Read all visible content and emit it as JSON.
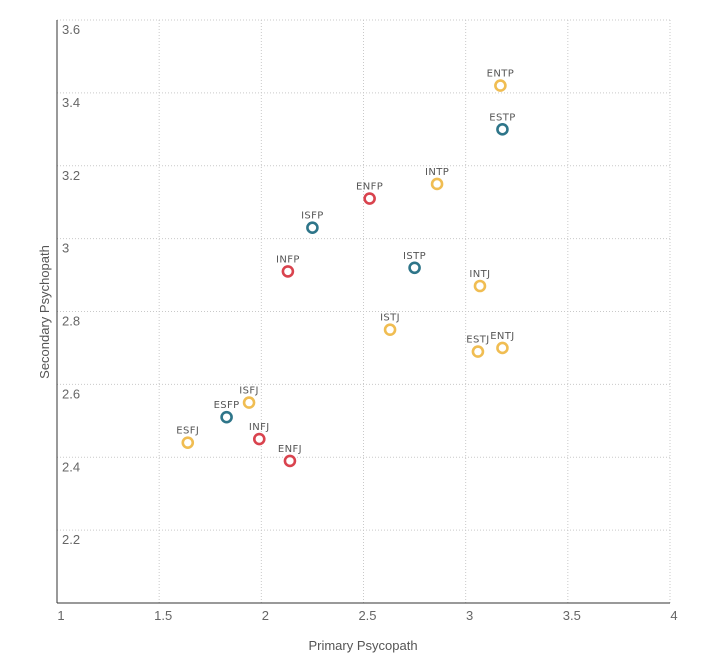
{
  "chart_data": {
    "type": "scatter",
    "title": "",
    "xlabel": "Primary Psycopath",
    "ylabel": "Secondary Psychopath",
    "xlim": [
      1,
      4
    ],
    "ylim": [
      2,
      3.6
    ],
    "x_ticks": [
      1,
      1.5,
      2,
      2.5,
      3,
      3.5,
      4
    ],
    "x_tick_labels": [
      "1",
      "1.5",
      "2",
      "2.5",
      "3",
      "3.5",
      "4"
    ],
    "y_ticks": [
      2.2,
      2.4,
      2.6,
      2.8,
      3,
      3.2,
      3.4,
      3.6
    ],
    "y_tick_labels": [
      "2.2",
      "2.4",
      "2.6",
      "2.8",
      "3",
      "3.2",
      "3.4",
      "3.6"
    ],
    "grid": true,
    "groups": {
      "red": "#d9434e",
      "teal": "#2e7589",
      "yellow": "#f0bd52"
    },
    "points": [
      {
        "label": "ENTP",
        "x": 3.17,
        "y": 3.42,
        "group": "yellow"
      },
      {
        "label": "ESTP",
        "x": 3.18,
        "y": 3.3,
        "group": "teal"
      },
      {
        "label": "INTP",
        "x": 2.86,
        "y": 3.15,
        "group": "yellow"
      },
      {
        "label": "ENFP",
        "x": 2.53,
        "y": 3.11,
        "group": "red"
      },
      {
        "label": "ISFP",
        "x": 2.25,
        "y": 3.03,
        "group": "teal"
      },
      {
        "label": "INFP",
        "x": 2.13,
        "y": 2.91,
        "group": "red"
      },
      {
        "label": "ISTP",
        "x": 2.75,
        "y": 2.92,
        "group": "teal"
      },
      {
        "label": "INTJ",
        "x": 3.07,
        "y": 2.87,
        "group": "yellow"
      },
      {
        "label": "ISTJ",
        "x": 2.63,
        "y": 2.75,
        "group": "yellow"
      },
      {
        "label": "ESTJ",
        "x": 3.06,
        "y": 2.69,
        "group": "yellow"
      },
      {
        "label": "ENTJ",
        "x": 3.18,
        "y": 2.7,
        "group": "yellow"
      },
      {
        "label": "ISFJ",
        "x": 1.94,
        "y": 2.55,
        "group": "yellow"
      },
      {
        "label": "ESFP",
        "x": 1.83,
        "y": 2.51,
        "group": "teal"
      },
      {
        "label": "ESFJ",
        "x": 1.64,
        "y": 2.44,
        "group": "yellow"
      },
      {
        "label": "INFJ",
        "x": 1.99,
        "y": 2.45,
        "group": "red"
      },
      {
        "label": "ENFJ",
        "x": 2.14,
        "y": 2.39,
        "group": "red"
      }
    ]
  }
}
